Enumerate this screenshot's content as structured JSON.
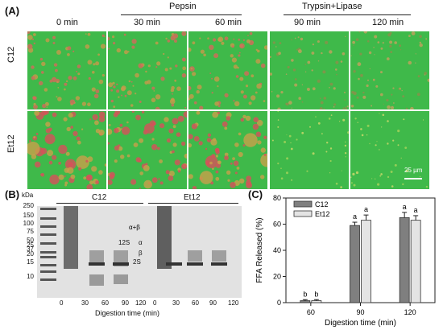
{
  "panelA": {
    "label": "(A)",
    "group_pepsin": "Pepsin",
    "group_trypsin": "Trypsin+Lipase",
    "times": [
      "0 min",
      "30 min",
      "60 min",
      "90 min",
      "120 min"
    ],
    "rows": [
      "C12",
      "Et12"
    ],
    "scalebar": "25 µm"
  },
  "panelB": {
    "label": "(B)",
    "kda_label": "kDa",
    "markers": [
      "250",
      "150",
      "100",
      "75",
      "50",
      "37",
      "25",
      "20",
      "15",
      "10"
    ],
    "group_c12": "C12",
    "group_et12": "Et12",
    "band_labels": [
      "α+β",
      "12S",
      "α",
      "β",
      "2S"
    ],
    "lane_times_c12": [
      "0",
      "30",
      "60",
      "90",
      "120"
    ],
    "lane_times_et12": [
      "0",
      "30",
      "60",
      "90",
      "120"
    ],
    "xlabel": "Digestion time (min)"
  },
  "chart_data": {
    "type": "bar",
    "panel_label": "(C)",
    "categories": [
      "60",
      "90",
      "120"
    ],
    "series": [
      {
        "name": "C12",
        "values": [
          1.5,
          59,
          65
        ],
        "errors": [
          0.8,
          2.5,
          4
        ],
        "letters": [
          "b",
          "a",
          "a"
        ],
        "color": "#7f7f7f"
      },
      {
        "name": "Et12",
        "values": [
          1.5,
          63,
          63
        ],
        "errors": [
          0.8,
          4,
          3.5
        ],
        "letters": [
          "b",
          "a",
          "a"
        ],
        "color": "#e4e4e4"
      }
    ],
    "xlabel": "Digestion time (min)",
    "ylabel": "FFA Released (%)",
    "ylim": [
      0,
      80
    ],
    "yticks": [
      "0",
      "20",
      "40",
      "60",
      "80"
    ],
    "legend_position": "top-left"
  }
}
